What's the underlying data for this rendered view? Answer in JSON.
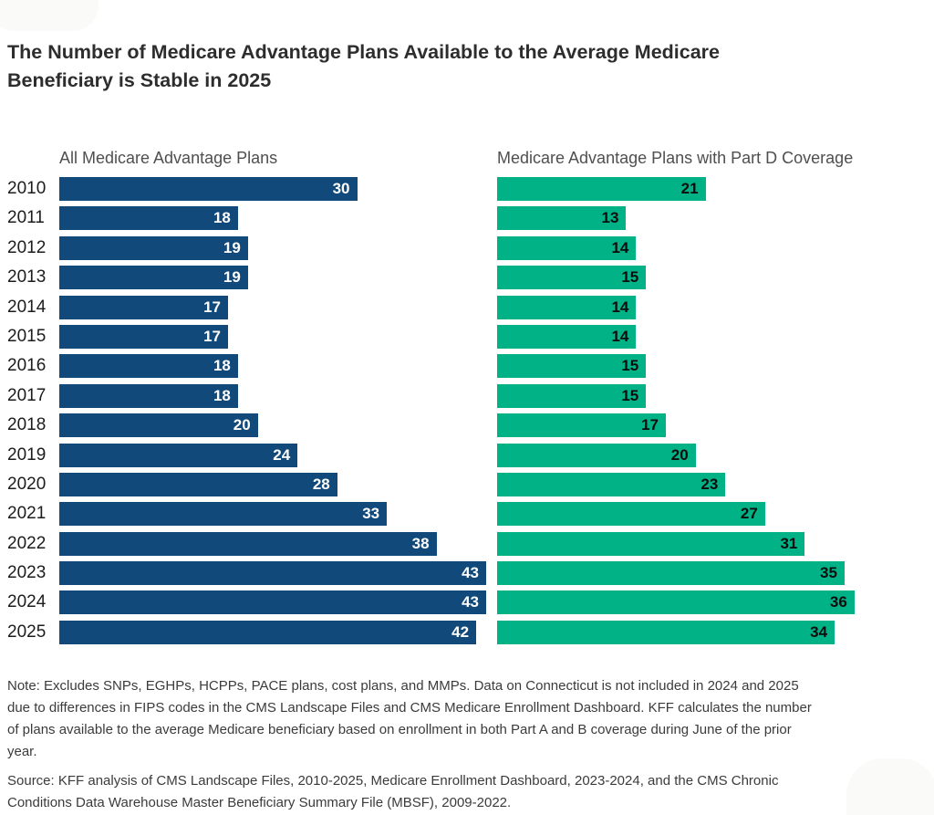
{
  "title": "The Number of Medicare Advantage Plans Available to the Average Medicare Beneficiary is Stable in 2025",
  "chart_data": {
    "type": "bar",
    "orientation": "horizontal",
    "categories": [
      "2010",
      "2011",
      "2012",
      "2013",
      "2014",
      "2015",
      "2016",
      "2017",
      "2018",
      "2019",
      "2020",
      "2021",
      "2022",
      "2023",
      "2024",
      "2025"
    ],
    "series": [
      {
        "name": "All Medicare Advantage Plans",
        "color": "#11497B",
        "label_color": "#ffffff",
        "values": [
          30,
          18,
          19,
          19,
          17,
          17,
          18,
          18,
          20,
          24,
          28,
          33,
          38,
          43,
          43,
          42
        ]
      },
      {
        "name": "Medicare Advantage Plans with Part D Coverage",
        "color": "#00B286",
        "label_color": "#0d0d0d",
        "values": [
          21,
          13,
          14,
          15,
          14,
          14,
          15,
          15,
          17,
          20,
          23,
          27,
          31,
          35,
          36,
          34
        ]
      }
    ],
    "xlim": [
      0,
      43
    ],
    "value_labels": "inside-end",
    "grid": false,
    "legend_position": "panel-headers"
  },
  "note": "Note: Excludes SNPs, EGHPs, HCPPs, PACE plans, cost plans, and MMPs. Data on Connecticut is not included in 2024 and 2025 due to differences in FIPS codes in the CMS Landscape Files and CMS Medicare Enrollment Dashboard. KFF calculates the number of plans available to the average Medicare beneficiary based on enrollment in both Part A and B coverage during June of the prior year.",
  "source": "Source: KFF analysis of CMS Landscape Files, 2010-2025, Medicare Enrollment Dashboard, 2023-2024, and the CMS Chronic Conditions Data Warehouse Master Beneficiary Summary File (MBSF), 2009-2022."
}
